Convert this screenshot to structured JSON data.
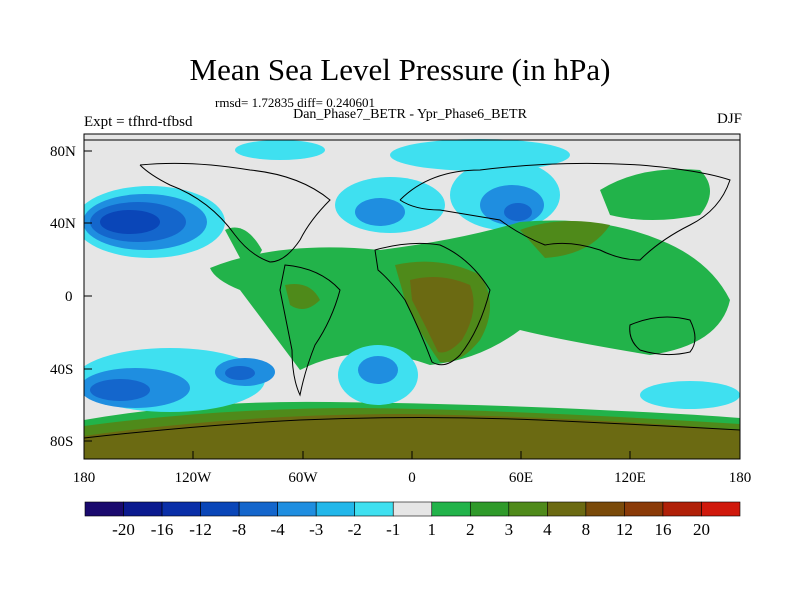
{
  "title": "Mean Sea Level Pressure (in hPa)",
  "stats": "rmsd= 1.72835 diff= 0.240601",
  "center_label": "Dan_Phase7_BETR - Ypr_Phase6_BETR",
  "left_label": "Expt = tfhrd-tfbsd",
  "right_label": "DJF",
  "axes": {
    "y_ticks": [
      "80N",
      "40N",
      "0",
      "40S",
      "80S"
    ],
    "x_ticks": [
      "180",
      "120W",
      "60W",
      "0",
      "60E",
      "120E",
      "180"
    ]
  },
  "colorbar": {
    "labels": [
      "-20",
      "-16",
      "-12",
      "-8",
      "-4",
      "-3",
      "-2",
      "-1",
      "1",
      "2",
      "3",
      "4",
      "8",
      "12",
      "16",
      "20"
    ],
    "colors": [
      "#1a0a6e",
      "#0b1a8f",
      "#0a2fa8",
      "#0a46b8",
      "#1466cc",
      "#1f8ee0",
      "#22b7ea",
      "#3fe0f0",
      "#e6e6e6",
      "#22b34a",
      "#2f9a2a",
      "#4f8a1a",
      "#6b6a12",
      "#7a4a0a",
      "#8a3a08",
      "#b02008",
      "#d0190c"
    ]
  }
}
